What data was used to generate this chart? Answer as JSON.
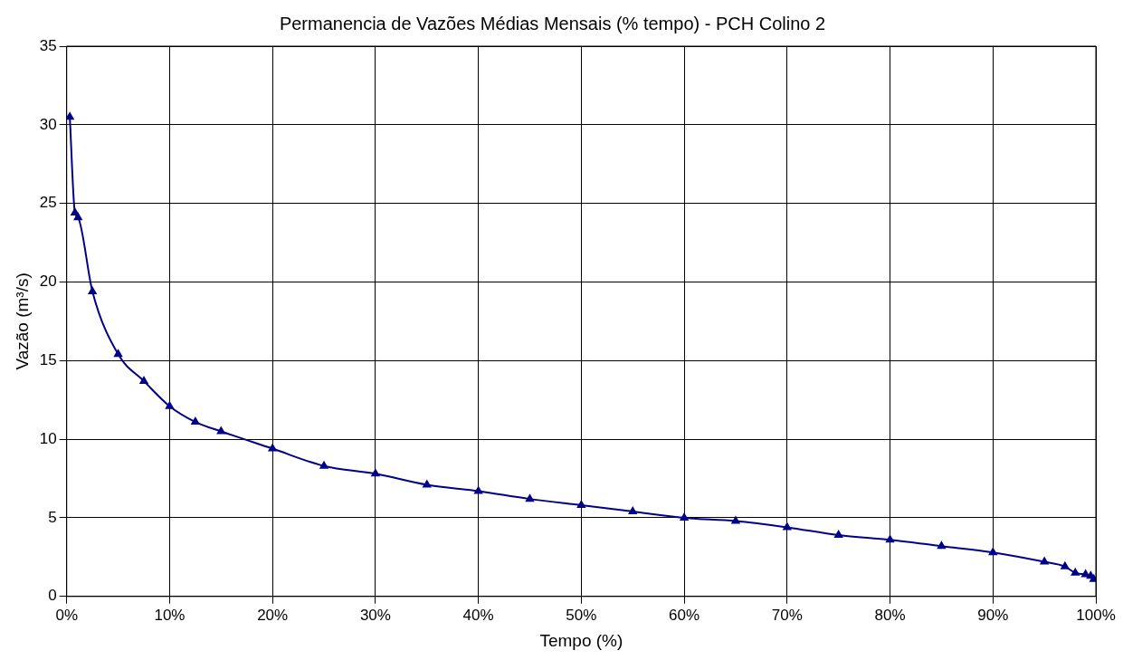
{
  "chart_data": {
    "type": "line",
    "title": "Permanencia de Vazões Médias Mensais (% tempo) - PCH Colino 2",
    "xlabel": "Tempo (%)",
    "ylabel": "Vazão (m³/s)",
    "x": [
      0.3,
      0.8,
      1.1,
      2.5,
      5,
      7.5,
      10,
      12.5,
      15,
      20,
      25,
      30,
      35,
      40,
      45,
      50,
      55,
      60,
      65,
      70,
      75,
      80,
      85,
      90,
      95,
      97,
      98,
      99,
      99.5,
      99.8
    ],
    "series": [
      {
        "color": "#00008b",
        "values": [
          30.5,
          24.4,
          24.1,
          19.4,
          15.4,
          13.7,
          12.1,
          11.1,
          10.5,
          9.4,
          8.3,
          7.8,
          7.1,
          6.7,
          6.2,
          5.8,
          5.4,
          5.0,
          4.8,
          4.4,
          3.9,
          3.6,
          3.2,
          2.8,
          2.2,
          1.9,
          1.5,
          1.4,
          1.3,
          1.1
        ]
      }
    ],
    "xlim": [
      0,
      100
    ],
    "xticks": [
      {
        "value": 0,
        "label": "0%"
      },
      {
        "value": 10,
        "label": "10%"
      },
      {
        "value": 20,
        "label": "20%"
      },
      {
        "value": 30,
        "label": "30%"
      },
      {
        "value": 40,
        "label": "40%"
      },
      {
        "value": 50,
        "label": "50%"
      },
      {
        "value": 60,
        "label": "60%"
      },
      {
        "value": 70,
        "label": "70%"
      },
      {
        "value": 80,
        "label": "80%"
      },
      {
        "value": 90,
        "label": "90%"
      },
      {
        "value": 100,
        "label": "100%"
      }
    ],
    "ylim": [
      0,
      35
    ],
    "yticks": [
      0,
      5,
      10,
      15,
      20,
      25,
      30,
      35
    ],
    "grid": true,
    "legend": false,
    "marker": "triangle",
    "line_style": "solid"
  }
}
